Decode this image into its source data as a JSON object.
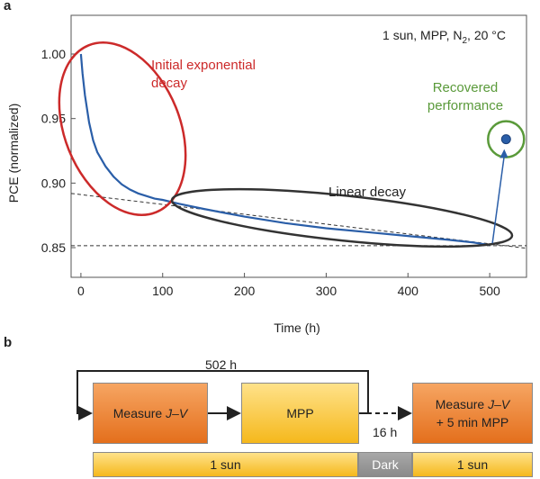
{
  "panels": {
    "a": "a",
    "b": "b"
  },
  "chart_data": {
    "type": "line",
    "title": "",
    "condition": "1 sun, MPP, N₂, 20 °C",
    "xlabel": "Time (h)",
    "ylabel": "PCE (normalized)",
    "xlim": [
      -12,
      545
    ],
    "ylim": [
      0.827,
      1.03
    ],
    "xticks": [
      0,
      100,
      200,
      300,
      400,
      500
    ],
    "yticks": [
      0.85,
      0.9,
      0.95,
      1.0
    ],
    "ytick_labels": [
      "0.85",
      "0.90",
      "0.95",
      "1.00"
    ],
    "series": [
      {
        "color": "#2a5ea8",
        "x": [
          0,
          2,
          5,
          10,
          15,
          20,
          30,
          40,
          50,
          60,
          70,
          80,
          90,
          100,
          120,
          150,
          200,
          250,
          300,
          350,
          400,
          450,
          480,
          500
        ],
        "y": [
          1.0,
          0.985,
          0.968,
          0.947,
          0.933,
          0.924,
          0.913,
          0.905,
          0.899,
          0.895,
          0.892,
          0.89,
          0.888,
          0.887,
          0.884,
          0.88,
          0.874,
          0.869,
          0.865,
          0.862,
          0.859,
          0.856,
          0.854,
          0.852
        ]
      }
    ],
    "recovered_point": {
      "x": 520,
      "y": 0.934,
      "color": "#2a5ea8"
    },
    "reference_lines": [
      {
        "style": "dashed",
        "x": [
          -12,
          545
        ],
        "y": [
          0.892,
          0.8495
        ]
      },
      {
        "style": "dashed",
        "x": [
          -12,
          545
        ],
        "y": [
          0.8515,
          0.8515
        ]
      }
    ],
    "annotations": [
      {
        "text_lines": [
          "Initial exponential",
          "decay"
        ],
        "color": "#cc2a2a"
      },
      {
        "text_lines": [
          "Linear decay"
        ],
        "color": "#222222"
      },
      {
        "text_lines": [
          "Recovered",
          "performance"
        ],
        "color": "#5a9a3a"
      }
    ]
  },
  "protocol": {
    "measure_prefix": "Measure ",
    "jv": "J–V",
    "mpp": "MPP",
    "measure2_line2": "+ 5 min MPP",
    "loop_time": "502 h",
    "gap_time": "16 h",
    "bars": [
      "1 sun",
      "Dark",
      "1 sun"
    ]
  }
}
